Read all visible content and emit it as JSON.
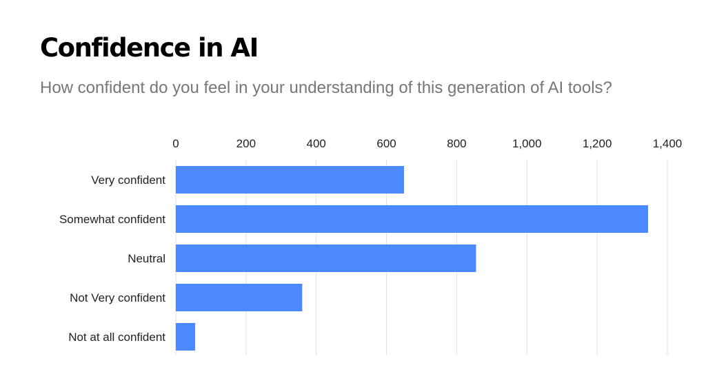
{
  "title": "Confidence in AI",
  "subtitle": "How confident do you feel in your understanding of this generation of AI tools?",
  "chart_data": {
    "type": "bar",
    "orientation": "horizontal",
    "categories": [
      "Very confident",
      "Somewhat confident",
      "Neutral",
      "Not Very confident",
      "Not at all confident"
    ],
    "values": [
      650,
      1345,
      855,
      360,
      55
    ],
    "xlim": [
      0,
      1400
    ],
    "xticks": [
      0,
      200,
      400,
      600,
      800,
      1000,
      1200,
      1400
    ],
    "xtick_labels": [
      "0",
      "200",
      "400",
      "600",
      "800",
      "1,000",
      "1,200",
      "1,400"
    ],
    "axis_position": "top",
    "grid": true,
    "bar_color": "#4c89ff",
    "grid_color": "#e2e2e2"
  }
}
